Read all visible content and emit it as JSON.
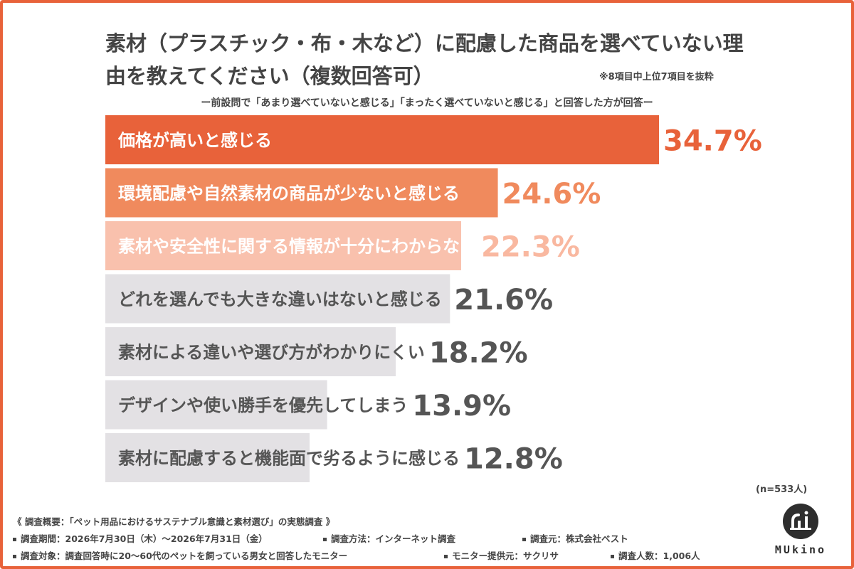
{
  "header": {
    "title": "素材（プラスチック・布・木など）に配慮した商品を選べていない理由を教えてください（複数回答可）",
    "excerpt_note": "※8項目中上位7項目を抜粋",
    "subtitle": "ー前設問で「あまり選べていないと感じる」「まったく選べていないと感じる」と回答した方が回答ー"
  },
  "chart_data": {
    "type": "bar",
    "orientation": "horizontal",
    "categories": [
      "価格が高いと感じる",
      "環境配慮や自然素材の商品が少ないと感じる",
      "素材や安全性に関する情報が十分にわからない",
      "どれを選んでも大きな違いはないと感じる",
      "素材による違いや選び方がわかりにくい",
      "デザインや使い勝手を優先してしまう",
      "素材に配慮すると機能面で劣るように感じる"
    ],
    "values": [
      34.7,
      24.6,
      22.3,
      21.6,
      18.2,
      13.9,
      12.8
    ],
    "value_labels": [
      "34.7%",
      "24.6%",
      "22.3%",
      "21.6%",
      "18.2%",
      "13.9%",
      "12.8%"
    ],
    "xlim": [
      0,
      38
    ],
    "colors": {
      "bars": [
        "#e8623a",
        "#f08a5d",
        "#f9c1ad",
        "#e3e1e4",
        "#e3e1e4",
        "#e3e1e4",
        "#e3e1e4"
      ],
      "labels": [
        "#ffffff",
        "#ffffff",
        "#ffffff",
        "#555555",
        "#555555",
        "#555555",
        "#555555"
      ],
      "values": [
        "#e8623a",
        "#f08a5d",
        "#f9b8a0",
        "#555555",
        "#555555",
        "#555555",
        "#555555"
      ]
    },
    "sample_size": "(n=533人)"
  },
  "footer": {
    "survey_title": "《 調査概要：「ペット用品におけるサステナブル意識と素材選び」の実態調査 》",
    "period": "調査期間：2026年7月30日（木）〜2026年7月31日（金）",
    "method": "調査方法：インターネット調査",
    "organizer": "調査元：株式会社ベスト",
    "target": "調査対象：調査回答時に20〜60代のペットを飼っている男女と回答したモニター",
    "provider": "モニター提供元：サクリサ",
    "respondents": "調査人数：1,006人"
  },
  "logo": {
    "text": "MUkino"
  },
  "colors": {
    "accent": "#e8623a",
    "border": "#e8623a"
  }
}
